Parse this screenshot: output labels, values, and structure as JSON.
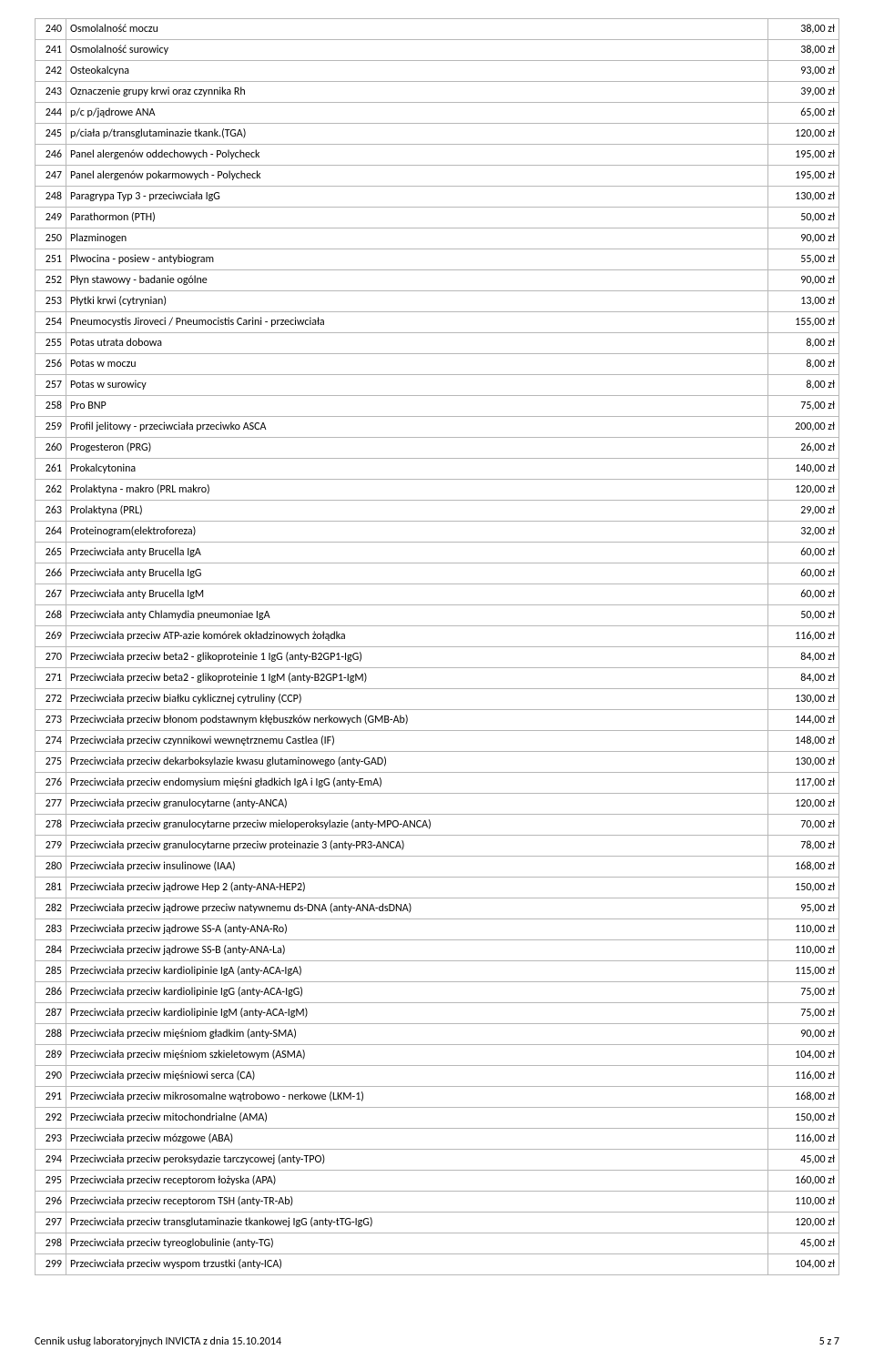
{
  "footer": {
    "left": "Cennik usług laboratoryjnych INVICTA z dnia 15.10.2014",
    "right": "5 z 7"
  },
  "rows": [
    {
      "n": "240",
      "name": "Osmolalność moczu",
      "price": "38,00 zł"
    },
    {
      "n": "241",
      "name": "Osmolalność surowicy",
      "price": "38,00 zł"
    },
    {
      "n": "242",
      "name": "Osteokalcyna",
      "price": "93,00 zł"
    },
    {
      "n": "243",
      "name": "Oznaczenie grupy krwi oraz czynnika Rh",
      "price": "39,00 zł"
    },
    {
      "n": "244",
      "name": "p/c p/jądrowe ANA",
      "price": "65,00 zł"
    },
    {
      "n": "245",
      "name": "p/ciała p/transglutaminazie tkank.(TGA)",
      "price": "120,00 zł"
    },
    {
      "n": "246",
      "name": "Panel alergenów oddechowych - Polycheck",
      "price": "195,00 zł"
    },
    {
      "n": "247",
      "name": "Panel alergenów pokarmowych - Polycheck",
      "price": "195,00 zł"
    },
    {
      "n": "248",
      "name": "Paragrypa Typ 3 - przeciwciała IgG",
      "price": "130,00 zł"
    },
    {
      "n": "249",
      "name": "Parathormon (PTH)",
      "price": "50,00 zł"
    },
    {
      "n": "250",
      "name": "Plazminogen",
      "price": "90,00 zł"
    },
    {
      "n": "251",
      "name": "Plwocina - posiew - antybiogram",
      "price": "55,00 zł"
    },
    {
      "n": "252",
      "name": "Płyn stawowy - badanie ogólne",
      "price": "90,00 zł"
    },
    {
      "n": "253",
      "name": "Płytki krwi (cytrynian)",
      "price": "13,00 zł"
    },
    {
      "n": "254",
      "name": "Pneumocystis Jiroveci / Pneumocistis Carini - przeciwciała",
      "price": "155,00 zł"
    },
    {
      "n": "255",
      "name": "Potas utrata dobowa",
      "price": "8,00 zł"
    },
    {
      "n": "256",
      "name": "Potas w moczu",
      "price": "8,00 zł"
    },
    {
      "n": "257",
      "name": "Potas w surowicy",
      "price": "8,00 zł"
    },
    {
      "n": "258",
      "name": "Pro BNP",
      "price": "75,00 zł"
    },
    {
      "n": "259",
      "name": "Profil jelitowy - przeciwciała przeciwko ASCA",
      "price": "200,00 zł"
    },
    {
      "n": "260",
      "name": "Progesteron (PRG)",
      "price": "26,00 zł"
    },
    {
      "n": "261",
      "name": "Prokalcytonina",
      "price": "140,00 zł"
    },
    {
      "n": "262",
      "name": "Prolaktyna - makro (PRL makro)",
      "price": "120,00 zł"
    },
    {
      "n": "263",
      "name": "Prolaktyna (PRL)",
      "price": "29,00 zł"
    },
    {
      "n": "264",
      "name": "Proteinogram(elektroforeza)",
      "price": "32,00 zł"
    },
    {
      "n": "265",
      "name": "Przeciwciała anty Brucella IgA",
      "price": "60,00 zł"
    },
    {
      "n": "266",
      "name": "Przeciwciała anty Brucella IgG",
      "price": "60,00 zł"
    },
    {
      "n": "267",
      "name": "Przeciwciała anty Brucella IgM",
      "price": "60,00 zł"
    },
    {
      "n": "268",
      "name": "Przeciwciała anty Chlamydia pneumoniae IgA",
      "price": "50,00 zł"
    },
    {
      "n": "269",
      "name": "Przeciwciała przeciw ATP-azie komórek okładzinowych żołądka",
      "price": "116,00 zł"
    },
    {
      "n": "270",
      "name": "Przeciwciała przeciw beta2 - glikoproteinie 1 IgG (anty-B2GP1-IgG)",
      "price": "84,00 zł"
    },
    {
      "n": "271",
      "name": "Przeciwciała przeciw beta2 - glikoproteinie 1 IgM (anty-B2GP1-IgM)",
      "price": "84,00 zł"
    },
    {
      "n": "272",
      "name": "Przeciwciała przeciw białku cyklicznej cytruliny (CCP)",
      "price": "130,00 zł"
    },
    {
      "n": "273",
      "name": "Przeciwciała przeciw błonom podstawnym kłębuszków nerkowych (GMB-Ab)",
      "price": "144,00 zł"
    },
    {
      "n": "274",
      "name": "Przeciwciała przeciw czynnikowi wewnętrznemu Castlea (IF)",
      "price": "148,00 zł"
    },
    {
      "n": "275",
      "name": "Przeciwciała przeciw dekarboksylazie kwasu glutaminowego (anty-GAD)",
      "price": "130,00 zł"
    },
    {
      "n": "276",
      "name": "Przeciwciała przeciw endomysium mięśni gładkich IgA i IgG (anty-EmA)",
      "price": "117,00 zł"
    },
    {
      "n": "277",
      "name": "Przeciwciała przeciw granulocytarne (anty-ANCA)",
      "price": "120,00 zł"
    },
    {
      "n": "278",
      "name": "Przeciwciała przeciw granulocytarne przeciw mieloperoksylazie (anty-MPO-ANCA)",
      "price": "70,00 zł"
    },
    {
      "n": "279",
      "name": "Przeciwciała przeciw granulocytarne przeciw proteinazie 3 (anty-PR3-ANCA)",
      "price": "78,00 zł"
    },
    {
      "n": "280",
      "name": "Przeciwciała przeciw insulinowe (IAA)",
      "price": "168,00 zł"
    },
    {
      "n": "281",
      "name": "Przeciwciała przeciw jądrowe Hep 2 (anty-ANA-HEP2)",
      "price": "150,00 zł"
    },
    {
      "n": "282",
      "name": "Przeciwciała przeciw jądrowe przeciw natywnemu ds-DNA (anty-ANA-dsDNA)",
      "price": "95,00 zł"
    },
    {
      "n": "283",
      "name": "Przeciwciała przeciw jądrowe SS-A (anty-ANA-Ro)",
      "price": "110,00 zł"
    },
    {
      "n": "284",
      "name": "Przeciwciała przeciw jądrowe SS-B (anty-ANA-La)",
      "price": "110,00 zł"
    },
    {
      "n": "285",
      "name": "Przeciwciała przeciw kardiolipinie IgA (anty-ACA-IgA)",
      "price": "115,00 zł"
    },
    {
      "n": "286",
      "name": "Przeciwciała przeciw kardiolipinie IgG (anty-ACA-IgG)",
      "price": "75,00 zł"
    },
    {
      "n": "287",
      "name": "Przeciwciała przeciw kardiolipinie IgM (anty-ACA-IgM)",
      "price": "75,00 zł"
    },
    {
      "n": "288",
      "name": "Przeciwciała przeciw mięśniom gładkim (anty-SMA)",
      "price": "90,00 zł"
    },
    {
      "n": "289",
      "name": "Przeciwciała przeciw mięśniom szkieletowym (ASMA)",
      "price": "104,00 zł"
    },
    {
      "n": "290",
      "name": "Przeciwciała przeciw mięśniowi serca (CA)",
      "price": "116,00 zł"
    },
    {
      "n": "291",
      "name": "Przeciwciała przeciw mikrosomalne wątrobowo - nerkowe (LKM-1)",
      "price": "168,00 zł"
    },
    {
      "n": "292",
      "name": "Przeciwciała przeciw mitochondrialne (AMA)",
      "price": "150,00 zł"
    },
    {
      "n": "293",
      "name": "Przeciwciała przeciw mózgowe (ABA)",
      "price": "116,00 zł"
    },
    {
      "n": "294",
      "name": "Przeciwciała przeciw peroksydazie tarczycowej (anty-TPO)",
      "price": "45,00 zł"
    },
    {
      "n": "295",
      "name": "Przeciwciała przeciw receptorom łożyska (APA)",
      "price": "160,00 zł"
    },
    {
      "n": "296",
      "name": "Przeciwciała przeciw receptorom TSH (anty-TR-Ab)",
      "price": "110,00 zł"
    },
    {
      "n": "297",
      "name": "Przeciwciała przeciw transglutaminazie tkankowej IgG (anty-tTG-IgG)",
      "price": "120,00 zł"
    },
    {
      "n": "298",
      "name": "Przeciwciała przeciw tyreoglobulinie (anty-TG)",
      "price": "45,00 zł"
    },
    {
      "n": "299",
      "name": "Przeciwciała przeciw wyspom trzustki (anty-ICA)",
      "price": "104,00 zł"
    }
  ]
}
